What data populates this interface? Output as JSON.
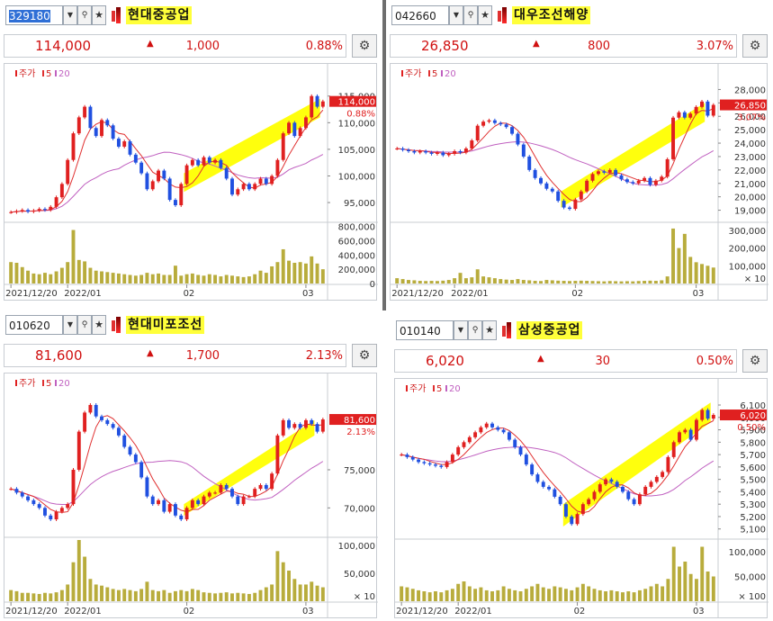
{
  "colors": {
    "up": "#e02020",
    "down": "#2050e0",
    "ma5": "#e03030",
    "ma20": "#c060c0",
    "volume": "#b8ac3c",
    "highlight": "#ffff00"
  },
  "chart_data": [
    {
      "type": "candlestick",
      "code": "329180",
      "name": "현대중공업",
      "selected_code": true,
      "price": "114,000",
      "change": "1,000",
      "change_pct": "0.88%",
      "last_label_price": "114,000",
      "last_label_pct": "0.88%",
      "legend": [
        "주가",
        "5",
        "20"
      ],
      "price_ticks": [
        {
          "v": 95000,
          "t": "95,000"
        },
        {
          "v": 100000,
          "t": "100,000"
        },
        {
          "v": 105000,
          "t": "105,000"
        },
        {
          "v": 110000,
          "t": "110,000"
        },
        {
          "v": 115000,
          "t": "115,000"
        }
      ],
      "price_range": [
        91800,
        118000
      ],
      "volume_ticks": [
        {
          "v": 0,
          "t": "0"
        },
        {
          "v": 200000,
          "t": "200,000"
        },
        {
          "v": 400000,
          "t": "400,000"
        },
        {
          "v": 600000,
          "t": "600,000"
        },
        {
          "v": 800000,
          "t": "800,000"
        }
      ],
      "volume_max": 820000,
      "volume_unit": "",
      "date_labels": [
        {
          "i": 0,
          "t": "2021/12/20"
        },
        {
          "i": 10,
          "t": "2022/01"
        },
        {
          "i": 31,
          "t": "02"
        },
        {
          "i": 52,
          "t": "03"
        }
      ],
      "closes": [
        93200,
        93400,
        93600,
        93300,
        93500,
        93800,
        93600,
        94200,
        96000,
        98500,
        103000,
        108000,
        111000,
        113000,
        109000,
        107500,
        110500,
        109500,
        107000,
        105500,
        106500,
        104000,
        102500,
        100500,
        97500,
        99000,
        101000,
        99500,
        95500,
        94500,
        98500,
        102000,
        103000,
        102000,
        103500,
        102500,
        103000,
        101500,
        99500,
        96500,
        97500,
        98500,
        97500,
        98500,
        99500,
        98500,
        100000,
        103000,
        108000,
        110000,
        107500,
        109000,
        111000,
        115000,
        113000,
        114000
      ],
      "volumes": [
        300000,
        290000,
        230000,
        180000,
        140000,
        130000,
        150000,
        130000,
        170000,
        220000,
        300000,
        750000,
        330000,
        310000,
        220000,
        180000,
        170000,
        160000,
        150000,
        140000,
        130000,
        120000,
        110000,
        120000,
        150000,
        130000,
        140000,
        120000,
        120000,
        250000,
        110000,
        130000,
        140000,
        120000,
        110000,
        130000,
        120000,
        100000,
        120000,
        110000,
        100000,
        90000,
        100000,
        130000,
        180000,
        150000,
        240000,
        300000,
        480000,
        320000,
        290000,
        300000,
        280000,
        380000,
        280000,
        200000
      ],
      "highlight": {
        "x0": 31,
        "x1": 54,
        "top0": 100500,
        "top1": 114500,
        "bot0": 97000,
        "bot1": 111000
      }
    },
    {
      "type": "candlestick",
      "code": "042660",
      "name": "대우조선해양",
      "selected_code": false,
      "price": "26,850",
      "change": "800",
      "change_pct": "3.07%",
      "last_label_price": "26,850",
      "last_label_pct": "3.07%",
      "legend": [
        "주가",
        "5",
        "20"
      ],
      "price_ticks": [
        {
          "v": 19000,
          "t": "19,000"
        },
        {
          "v": 20000,
          "t": "20,000"
        },
        {
          "v": 21000,
          "t": "21,000"
        },
        {
          "v": 22000,
          "t": "22,000"
        },
        {
          "v": 23000,
          "t": "23,000"
        },
        {
          "v": 24000,
          "t": "24,000"
        },
        {
          "v": 25000,
          "t": "25,000"
        },
        {
          "v": 26000,
          "t": "26,000"
        },
        {
          "v": 27000,
          "t": "27,000"
        },
        {
          "v": 28000,
          "t": "28,000"
        }
      ],
      "price_range": [
        18300,
        28700
      ],
      "volume_ticks": [
        {
          "v": 100000,
          "t": "100,000"
        },
        {
          "v": 200000,
          "t": "200,000"
        },
        {
          "v": 300000,
          "t": "300,000"
        }
      ],
      "volume_max": 330000,
      "volume_unit": "× 10",
      "date_labels": [
        {
          "i": 0,
          "t": "2021/12/20"
        },
        {
          "i": 10,
          "t": "2022/01"
        },
        {
          "i": 31,
          "t": "02"
        },
        {
          "i": 52,
          "t": "03"
        }
      ],
      "closes": [
        23600,
        23500,
        23400,
        23300,
        23400,
        23300,
        23200,
        23300,
        23100,
        23200,
        23400,
        23300,
        23600,
        24200,
        25300,
        25600,
        25700,
        25500,
        25400,
        25200,
        24700,
        23900,
        23000,
        22000,
        21400,
        21000,
        20600,
        20400,
        19700,
        19200,
        19100,
        19800,
        20400,
        21200,
        21700,
        21900,
        21800,
        22000,
        21600,
        21300,
        21100,
        21000,
        21200,
        21400,
        20900,
        21200,
        21500,
        22800,
        25900,
        26300,
        25900,
        26200,
        26700,
        27100,
        26050,
        26850
      ],
      "volumes": [
        30000,
        25000,
        20000,
        18000,
        15000,
        14000,
        15000,
        14000,
        16000,
        20000,
        30000,
        60000,
        30000,
        35000,
        80000,
        40000,
        35000,
        30000,
        25000,
        22000,
        20000,
        25000,
        20000,
        18000,
        15000,
        14000,
        20000,
        18000,
        16000,
        15000,
        14000,
        15000,
        16000,
        15000,
        14000,
        13000,
        12000,
        14000,
        13000,
        12000,
        13000,
        12000,
        14000,
        15000,
        16000,
        15000,
        18000,
        40000,
        310000,
        200000,
        280000,
        150000,
        120000,
        110000,
        100000,
        90000
      ],
      "highlight": {
        "x0": 29,
        "x1": 53,
        "top0": 20400,
        "top1": 27000,
        "bot0": 19200,
        "bot1": 25600
      }
    },
    {
      "type": "candlestick",
      "code": "010620",
      "name": "현대미포조선",
      "selected_code": false,
      "price": "81,600",
      "change": "1,700",
      "change_pct": "2.13%",
      "last_label_price": "81,600",
      "last_label_pct": "2.13%",
      "legend": [
        "주가",
        "5",
        "20"
      ],
      "price_ticks": [
        {
          "v": 70000,
          "t": "70,000"
        },
        {
          "v": 75000,
          "t": "75,000"
        }
      ],
      "price_range": [
        66500,
        85500
      ],
      "volume_ticks": [
        {
          "v": 50000,
          "t": "50,000"
        },
        {
          "v": 100000,
          "t": "100,000"
        }
      ],
      "volume_max": 110000,
      "volume_unit": "× 10",
      "date_labels": [
        {
          "i": 0,
          "t": "2021/12/20"
        },
        {
          "i": 10,
          "t": "2022/01"
        },
        {
          "i": 31,
          "t": "02"
        },
        {
          "i": 52,
          "t": "03"
        }
      ],
      "closes": [
        72500,
        72000,
        71500,
        71000,
        70500,
        70000,
        69000,
        68500,
        69500,
        70000,
        70500,
        75000,
        80000,
        82500,
        83500,
        82000,
        81500,
        81000,
        80500,
        79500,
        78000,
        77000,
        76000,
        74000,
        71500,
        70500,
        71000,
        69500,
        70500,
        69000,
        68500,
        70000,
        71000,
        70500,
        71500,
        72000,
        72000,
        73000,
        72500,
        71500,
        70500,
        71500,
        71500,
        72500,
        73000,
        72500,
        74500,
        79500,
        81500,
        80500,
        81000,
        80500,
        81500,
        81000,
        80000,
        81600
      ],
      "volumes": [
        20000,
        18000,
        15000,
        15000,
        14000,
        13000,
        15000,
        14000,
        16000,
        20000,
        30000,
        70000,
        110000,
        80000,
        40000,
        30000,
        28000,
        25000,
        22000,
        20000,
        22000,
        20000,
        18000,
        22000,
        35000,
        20000,
        18000,
        20000,
        15000,
        18000,
        20000,
        18000,
        22000,
        20000,
        16000,
        15000,
        14000,
        15000,
        16000,
        14000,
        15000,
        14000,
        13000,
        15000,
        20000,
        25000,
        30000,
        90000,
        70000,
        55000,
        40000,
        30000,
        30000,
        35000,
        28000,
        25000
      ],
      "highlight": {
        "x0": 31,
        "x1": 53,
        "top0": 70500,
        "top1": 81500,
        "bot0": 69000,
        "bot1": 79500
      }
    },
    {
      "type": "candlestick",
      "code": "010140",
      "name": "삼성중공업",
      "selected_code": false,
      "price": "6,020",
      "change": "30",
      "change_pct": "0.50%",
      "last_label_price": "6,020",
      "last_label_pct": "0.50%",
      "legend": [
        "주가",
        "5",
        "20"
      ],
      "price_ticks": [
        {
          "v": 5100,
          "t": "5,100"
        },
        {
          "v": 5200,
          "t": "5,200"
        },
        {
          "v": 5300,
          "t": "5,300"
        },
        {
          "v": 5400,
          "t": "5,400"
        },
        {
          "v": 5500,
          "t": "5,500"
        },
        {
          "v": 5600,
          "t": "5,600"
        },
        {
          "v": 5700,
          "t": "5,700"
        },
        {
          "v": 5800,
          "t": "5,800"
        },
        {
          "v": 5900,
          "t": "5,900"
        },
        {
          "v": 6000,
          "t": "6,000"
        },
        {
          "v": 6100,
          "t": "6,100"
        }
      ],
      "price_range": [
        5040,
        6180
      ],
      "volume_ticks": [
        {
          "v": 50000,
          "t": "50,000"
        },
        {
          "v": 100000,
          "t": "100,000"
        }
      ],
      "volume_max": 120000,
      "volume_unit": "× 100",
      "date_labels": [
        {
          "i": 0,
          "t": "2021/12/20"
        },
        {
          "i": 10,
          "t": "2022/01"
        },
        {
          "i": 31,
          "t": "02"
        },
        {
          "i": 52,
          "t": "03"
        }
      ],
      "closes": [
        5700,
        5680,
        5660,
        5640,
        5630,
        5620,
        5610,
        5600,
        5640,
        5700,
        5760,
        5800,
        5840,
        5880,
        5920,
        5950,
        5920,
        5900,
        5880,
        5820,
        5760,
        5700,
        5620,
        5540,
        5480,
        5440,
        5420,
        5360,
        5300,
        5200,
        5140,
        5220,
        5300,
        5340,
        5400,
        5460,
        5500,
        5480,
        5440,
        5400,
        5340,
        5300,
        5380,
        5440,
        5480,
        5520,
        5560,
        5680,
        5800,
        5880,
        5900,
        5820,
        5980,
        6060,
        5990,
        6020
      ],
      "volumes": [
        30000,
        28000,
        25000,
        22000,
        20000,
        18000,
        20000,
        18000,
        22000,
        25000,
        35000,
        40000,
        30000,
        25000,
        28000,
        22000,
        20000,
        22000,
        30000,
        25000,
        22000,
        20000,
        25000,
        30000,
        35000,
        28000,
        25000,
        30000,
        28000,
        25000,
        22000,
        28000,
        35000,
        30000,
        25000,
        22000,
        20000,
        22000,
        20000,
        18000,
        20000,
        18000,
        22000,
        25000,
        30000,
        35000,
        30000,
        45000,
        110000,
        70000,
        80000,
        55000,
        45000,
        110000,
        60000,
        50000
      ],
      "highlight": {
        "x0": 29,
        "x1": 54,
        "top0": 5300,
        "top1": 6120,
        "bot0": 5120,
        "bot1": 5960
      }
    }
  ]
}
